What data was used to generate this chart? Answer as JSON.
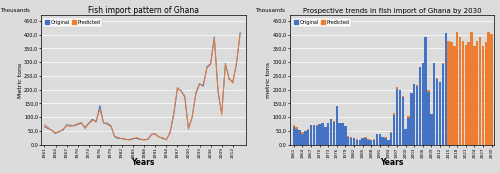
{
  "title_left": "Fish import pattern of Ghana",
  "title_right": "Prospective trends in fish import of Ghana by 2030",
  "xlabel": "Years",
  "ylabel_left": "Metric tons",
  "ylabel_right": "metric tons",
  "ylabel_thousands": "Thousands",
  "color_original": "#4472C4",
  "color_predicted": "#ED7D31",
  "bg_color": "#D9D9D9",
  "plot_bg": "#D9D9D9",
  "years_historical": [
    1961,
    1962,
    1963,
    1964,
    1965,
    1966,
    1967,
    1968,
    1969,
    1970,
    1971,
    1972,
    1973,
    1974,
    1975,
    1976,
    1977,
    1978,
    1979,
    1980,
    1981,
    1982,
    1983,
    1984,
    1985,
    1986,
    1987,
    1988,
    1989,
    1990,
    1991,
    1992,
    1993,
    1994,
    1995,
    1996,
    1997,
    1998,
    1999,
    2000,
    2001,
    2002,
    2003,
    2004,
    2005,
    2006,
    2007,
    2008,
    2009,
    2010,
    2011,
    2012,
    2013,
    2014
  ],
  "original_data": [
    65,
    58,
    52,
    40,
    48,
    52,
    72,
    70,
    68,
    73,
    78,
    62,
    78,
    92,
    82,
    142,
    78,
    78,
    68,
    28,
    22,
    22,
    18,
    18,
    22,
    22,
    18,
    18,
    18,
    38,
    38,
    28,
    22,
    18,
    42,
    108,
    202,
    197,
    172,
    58,
    98,
    188,
    222,
    212,
    282,
    295,
    392,
    192,
    112,
    295,
    238,
    228,
    292,
    407
  ],
  "predicted_data": [
    72,
    62,
    50,
    44,
    46,
    56,
    68,
    66,
    70,
    76,
    80,
    58,
    76,
    88,
    86,
    128,
    80,
    73,
    66,
    30,
    26,
    20,
    20,
    16,
    20,
    26,
    20,
    16,
    20,
    36,
    40,
    26,
    26,
    16,
    46,
    113,
    208,
    193,
    178,
    56,
    103,
    183,
    218,
    218,
    278,
    292,
    388,
    198,
    108,
    292,
    243,
    223,
    298,
    402
  ],
  "years_future": [
    2015,
    2016,
    2017,
    2018,
    2019,
    2020,
    2021,
    2022,
    2023,
    2024,
    2025,
    2026,
    2027,
    2028,
    2029,
    2030
  ],
  "predicted_future": [
    378,
    372,
    358,
    408,
    392,
    378,
    362,
    372,
    408,
    358,
    378,
    392,
    358,
    372,
    408,
    402
  ],
  "bar_original_historical": [
    65,
    58,
    52,
    40,
    48,
    52,
    72,
    70,
    68,
    73,
    78,
    62,
    78,
    92,
    82,
    142,
    78,
    78,
    68,
    28,
    22,
    22,
    18,
    18,
    22,
    22,
    18,
    18,
    18,
    38,
    38,
    28,
    22,
    18,
    42,
    108,
    202,
    197,
    172,
    58,
    98,
    188,
    222,
    212,
    282,
    295,
    392,
    192,
    112,
    295,
    238,
    228,
    292,
    407
  ],
  "bar_predicted_historical": [
    72,
    62,
    50,
    44,
    46,
    56,
    68,
    66,
    70,
    76,
    80,
    58,
    76,
    88,
    86,
    128,
    80,
    73,
    66,
    30,
    26,
    20,
    20,
    16,
    20,
    26,
    20,
    16,
    20,
    36,
    40,
    26,
    26,
    16,
    46,
    113,
    208,
    193,
    178,
    56,
    103,
    183,
    218,
    218,
    278,
    292,
    388,
    198,
    108,
    292,
    243,
    223,
    298,
    402
  ],
  "yticks": [
    0,
    50,
    100,
    150,
    200,
    250,
    300,
    350,
    400,
    450
  ],
  "ytick_labels": [
    "0,0",
    "50,0",
    "100,0",
    "150,0",
    "200,0",
    "250,0",
    "300,0",
    "350,0",
    "400,0",
    "450,0"
  ],
  "xticks_left": [
    1961,
    1964,
    1967,
    1970,
    1973,
    1976,
    1979,
    1982,
    1985,
    1988,
    1991,
    1994,
    1997,
    2000,
    2003,
    2006,
    2009,
    2012
  ],
  "xticks_right": [
    1961,
    1964,
    1967,
    1970,
    1973,
    1976,
    1979,
    1982,
    1985,
    1988,
    1991,
    1994,
    1997,
    2000,
    2003,
    2006,
    2009,
    2012,
    2015,
    2018,
    2021,
    2024,
    2027,
    2030
  ]
}
